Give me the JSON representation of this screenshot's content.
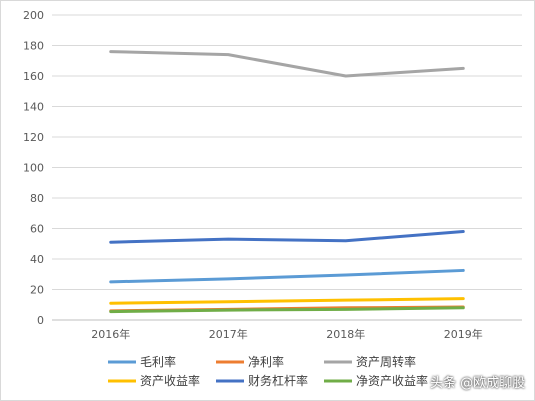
{
  "watermark": "头条 @欧成聊股",
  "chart_data": {
    "type": "line",
    "categories": [
      "2016年",
      "2017年",
      "2018年",
      "2019年"
    ],
    "ylim": [
      0,
      200
    ],
    "yticks": [
      0,
      20,
      40,
      60,
      80,
      100,
      120,
      140,
      160,
      180,
      200
    ],
    "grid": true,
    "legend_position": "bottom",
    "series": [
      {
        "name": "毛利率",
        "color": "#5b9bd5",
        "values": [
          25,
          27,
          29.5,
          32.5
        ]
      },
      {
        "name": "净利率",
        "color": "#ed7d31",
        "values": [
          6,
          7,
          8,
          8.5
        ]
      },
      {
        "name": "资产周转率",
        "color": "#a5a5a5",
        "values": [
          176,
          174,
          160,
          165
        ]
      },
      {
        "name": "资产收益率",
        "color": "#ffc000",
        "values": [
          11,
          12,
          13,
          14
        ]
      },
      {
        "name": "财务杠杆率",
        "color": "#4472c4",
        "values": [
          51,
          53,
          52,
          58
        ]
      },
      {
        "name": "净资产收益率",
        "color": "#70ad47",
        "values": [
          5.5,
          6.5,
          7,
          8
        ]
      }
    ]
  }
}
